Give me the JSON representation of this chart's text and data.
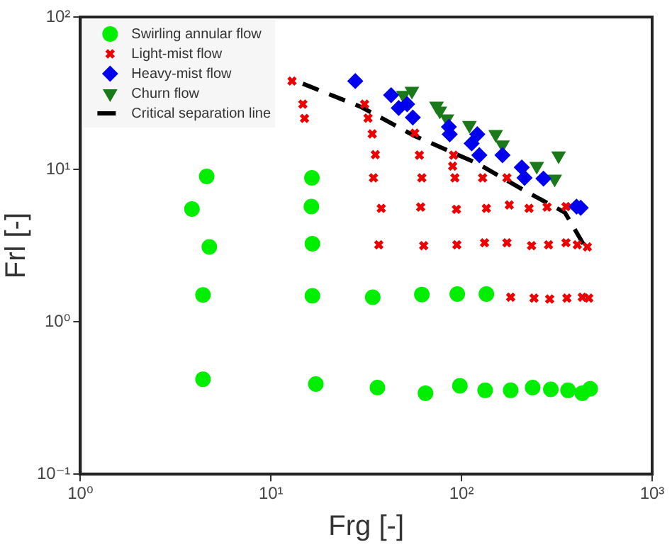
{
  "chart_data": {
    "type": "scatter",
    "xlabel": "Frg [-]",
    "ylabel": "Frl [-]",
    "log": "xy",
    "grid": false,
    "legend": "top left",
    "xlim": [
      1,
      1000
    ],
    "xticks": [
      {
        "value": 1,
        "label": "10⁰"
      },
      {
        "value": 10,
        "label": "10¹"
      },
      {
        "value": 100,
        "label": "10²"
      },
      {
        "value": 1000,
        "label": "10³"
      }
    ],
    "ylim": [
      0.1,
      100
    ],
    "yticks": [
      {
        "value": 0.1,
        "label": "10⁻¹"
      },
      {
        "value": 1,
        "label": "10⁰"
      },
      {
        "value": 10,
        "label": "10¹"
      },
      {
        "value": 100,
        "label": "10²"
      }
    ],
    "series": [
      {
        "name": "Swirling annular flow",
        "color": "#00ee00",
        "marker": "circle",
        "x": [
          4.6,
          3.85,
          4.75,
          4.4,
          4.4,
          16.4,
          16.3,
          16.5,
          16.5,
          17.2,
          34.2,
          36.2,
          61.9,
          64.7,
          95,
          98,
          135,
          133,
          181,
          236,
          294,
          362,
          430,
          473
        ],
        "values": [
          9.0,
          5.5,
          3.1,
          1.5,
          0.42,
          8.8,
          5.7,
          3.25,
          1.48,
          0.39,
          1.45,
          0.37,
          1.51,
          0.34,
          1.52,
          0.38,
          1.52,
          0.355,
          0.355,
          0.37,
          0.36,
          0.355,
          0.34,
          0.363
        ]
      },
      {
        "name": "Light-mist flow",
        "color": "#ee0000",
        "marker": "cross",
        "x": [
          12.9,
          14.7,
          15.0,
          31.0,
          32.3,
          34.0,
          35.3,
          34.5,
          37.9,
          36.8,
          56.8,
          60.1,
          61.9,
          61,
          63.3,
          90.8,
          89.8,
          92.3,
          94,
          94.5,
          129,
          135,
          132,
          181,
          173,
          178,
          173,
          226,
          233,
          240,
          281,
          286,
          290,
          353,
          353,
          357,
          405,
          430,
          457,
          465
        ],
        "values": [
          38,
          26.8,
          21.6,
          26.8,
          21.7,
          17.1,
          12.5,
          8.8,
          5.55,
          3.2,
          17.3,
          12.4,
          8.8,
          5.66,
          3.16,
          12.4,
          10.5,
          8.8,
          5.47,
          3.2,
          8.8,
          5.55,
          3.3,
          1.45,
          8.8,
          5.84,
          3.3,
          5.55,
          3.16,
          1.43,
          5.66,
          3.2,
          1.41,
          5.7,
          3.3,
          1.43,
          3.2,
          1.45,
          3.1,
          1.43
        ]
      },
      {
        "name": "Heavy-mist flow",
        "color": "#0000ee",
        "marker": "diamond",
        "x": [
          27.7,
          42.7,
          46.8,
          51.8,
          55.5,
          85.8,
          86.7,
          113,
          121,
          124,
          164,
          207,
          214,
          269,
          401,
          422
        ],
        "values": [
          38,
          30.7,
          25.3,
          26.8,
          21.9,
          19,
          17,
          14.8,
          17,
          12.4,
          12.4,
          10.3,
          8.8,
          8.7,
          5.7,
          5.6
        ]
      },
      {
        "name": "Churn flow",
        "color": "#1a7a1a",
        "marker": "triangle",
        "x": [
          49.5,
          54.9,
          73.9,
          76.9,
          83.8,
          110,
          151,
          164,
          248,
          323,
          308
        ],
        "values": [
          30.7,
          32.7,
          26.1,
          24.2,
          21.5,
          19.5,
          17,
          14.5,
          10.5,
          12.3,
          8.65
        ]
      },
      {
        "name": "Critical separation line",
        "type": "line",
        "color": "#000000",
        "marker": "none",
        "line_style": "dashed",
        "x": [
          14.7,
          29.9,
          56,
          120,
          221,
          349,
          439
        ],
        "values": [
          36.5,
          25.6,
          16.7,
          11,
          7.1,
          5.2,
          3.18
        ]
      }
    ]
  }
}
